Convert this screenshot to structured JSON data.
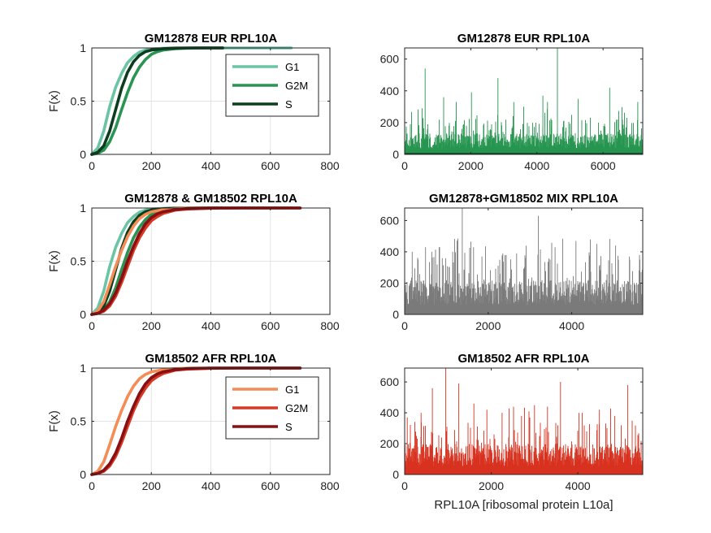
{
  "chart_data": [
    {
      "type": "line",
      "title": "GM12878 EUR RPL10A",
      "xlabel": "",
      "ylabel": "F(x)",
      "xlim": [
        0,
        800
      ],
      "ylim": [
        0,
        1
      ],
      "xticks": [
        "0",
        "200",
        "400",
        "600",
        "800"
      ],
      "yticks": [
        "0",
        "0.5",
        "1"
      ],
      "grid": true,
      "legend": {
        "placement": "top-right",
        "entries": [
          "G1",
          "G2M",
          "S"
        ]
      },
      "series": [
        {
          "name": "G1",
          "color": "#6bc4a4",
          "x": [
            0,
            20,
            40,
            60,
            80,
            100,
            120,
            140,
            160,
            180,
            200,
            240,
            280,
            340,
            400,
            670
          ],
          "y": [
            0,
            0.06,
            0.22,
            0.45,
            0.63,
            0.76,
            0.86,
            0.92,
            0.96,
            0.98,
            0.99,
            0.997,
            0.999,
            1,
            1,
            1
          ]
        },
        {
          "name": "G2M",
          "color": "#2a9452",
          "x": [
            0,
            20,
            40,
            60,
            80,
            100,
            120,
            140,
            160,
            180,
            200,
            220,
            240,
            280,
            320,
            400,
            440
          ],
          "y": [
            0,
            0.01,
            0.04,
            0.12,
            0.25,
            0.42,
            0.58,
            0.72,
            0.82,
            0.89,
            0.94,
            0.965,
            0.98,
            0.993,
            0.998,
            1,
            1
          ]
        },
        {
          "name": "S",
          "color": "#0d3d1f",
          "x": [
            0,
            20,
            40,
            60,
            80,
            100,
            120,
            140,
            160,
            180,
            200,
            240,
            280,
            340,
            420,
            440
          ],
          "y": [
            0,
            0.02,
            0.08,
            0.22,
            0.42,
            0.62,
            0.77,
            0.87,
            0.93,
            0.965,
            0.98,
            0.993,
            0.998,
            1,
            1,
            1
          ]
        }
      ]
    },
    {
      "type": "bar",
      "title": "GM12878 EUR RPL10A",
      "xlabel": "",
      "ylabel": "",
      "xlim": [
        0,
        7200
      ],
      "ylim": [
        0,
        670
      ],
      "xticks": [
        "0",
        "2000",
        "4000",
        "6000"
      ],
      "yticks": [
        "0",
        "200",
        "400",
        "600"
      ],
      "grid": false,
      "color": "#26954f",
      "n": 7200,
      "median": 60,
      "spikes": [
        [
          530,
          290
        ],
        [
          620,
          540
        ],
        [
          1180,
          360
        ],
        [
          1560,
          330
        ],
        [
          2020,
          390
        ],
        [
          2820,
          480
        ],
        [
          3300,
          330
        ],
        [
          3600,
          300
        ],
        [
          4180,
          370
        ],
        [
          4320,
          330
        ],
        [
          4620,
          670
        ],
        [
          5250,
          350
        ],
        [
          6200,
          420
        ],
        [
          7050,
          330
        ]
      ]
    },
    {
      "type": "line",
      "title": "GM12878 & GM18502 RPL10A",
      "xlabel": "",
      "ylabel": "F(x)",
      "xlim": [
        0,
        800
      ],
      "ylim": [
        0,
        1
      ],
      "xticks": [
        "0",
        "200",
        "400",
        "600",
        "800"
      ],
      "yticks": [
        "0",
        "0.5",
        "1"
      ],
      "grid": true,
      "series": [
        {
          "name": "",
          "color": "#6bc4a4",
          "x": [
            0,
            20,
            40,
            60,
            80,
            100,
            120,
            140,
            160,
            180,
            200,
            240,
            280,
            340,
            400,
            670
          ],
          "y": [
            0,
            0.06,
            0.22,
            0.45,
            0.63,
            0.76,
            0.86,
            0.92,
            0.96,
            0.98,
            0.99,
            0.997,
            0.999,
            1,
            1,
            1
          ]
        },
        {
          "name": "",
          "color": "#2a9452",
          "x": [
            0,
            20,
            40,
            60,
            80,
            100,
            120,
            140,
            160,
            180,
            200,
            220,
            240,
            280,
            320,
            400,
            440
          ],
          "y": [
            0,
            0.01,
            0.04,
            0.12,
            0.25,
            0.42,
            0.58,
            0.72,
            0.82,
            0.89,
            0.94,
            0.965,
            0.98,
            0.993,
            0.998,
            1,
            1
          ]
        },
        {
          "name": "",
          "color": "#0d3d1f",
          "x": [
            0,
            20,
            40,
            60,
            80,
            100,
            120,
            140,
            160,
            180,
            200,
            240,
            280,
            340,
            420,
            440
          ],
          "y": [
            0,
            0.02,
            0.08,
            0.22,
            0.42,
            0.62,
            0.77,
            0.87,
            0.93,
            0.965,
            0.98,
            0.993,
            0.998,
            1,
            1,
            1
          ]
        },
        {
          "name": "",
          "color": "#f38c55",
          "x": [
            0,
            20,
            40,
            60,
            80,
            100,
            120,
            140,
            160,
            180,
            200,
            240,
            280,
            340,
            400,
            700
          ],
          "y": [
            0,
            0.03,
            0.12,
            0.28,
            0.45,
            0.6,
            0.73,
            0.83,
            0.9,
            0.94,
            0.965,
            0.985,
            0.995,
            0.999,
            1,
            1
          ]
        },
        {
          "name": "",
          "color": "#d43a26",
          "x": [
            0,
            20,
            40,
            60,
            80,
            100,
            120,
            140,
            160,
            180,
            200,
            220,
            240,
            280,
            320,
            400,
            500,
            700
          ],
          "y": [
            0,
            0.01,
            0.03,
            0.08,
            0.17,
            0.3,
            0.45,
            0.6,
            0.72,
            0.81,
            0.88,
            0.92,
            0.95,
            0.98,
            0.99,
            0.998,
            1,
            1
          ]
        },
        {
          "name": "",
          "color": "#8a0f12",
          "x": [
            0,
            20,
            40,
            60,
            80,
            100,
            120,
            140,
            160,
            180,
            200,
            220,
            240,
            280,
            320,
            400,
            500,
            700
          ],
          "y": [
            0,
            0.01,
            0.04,
            0.1,
            0.2,
            0.34,
            0.5,
            0.64,
            0.76,
            0.85,
            0.91,
            0.945,
            0.965,
            0.985,
            0.995,
            0.999,
            1,
            1
          ]
        }
      ]
    },
    {
      "type": "bar",
      "title": "GM12878+GM18502 MIX RPL10A",
      "xlabel": "",
      "ylabel": "",
      "xlim": [
        0,
        5700
      ],
      "ylim": [
        0,
        680
      ],
      "xticks": [
        "0",
        "2000",
        "4000"
      ],
      "yticks": [
        "0",
        "200",
        "400",
        "600"
      ],
      "grid": false,
      "color": "#7a7a7a",
      "n": 5700,
      "median": 100,
      "spikes": [
        [
          180,
          400
        ],
        [
          500,
          430
        ],
        [
          650,
          400
        ],
        [
          900,
          360
        ],
        [
          1150,
          400
        ],
        [
          1380,
          680
        ],
        [
          1650,
          430
        ],
        [
          1850,
          370
        ],
        [
          2350,
          390
        ],
        [
          2680,
          390
        ],
        [
          2900,
          360
        ],
        [
          3200,
          630
        ],
        [
          3600,
          430
        ],
        [
          4100,
          470
        ],
        [
          4600,
          450
        ],
        [
          5050,
          440
        ],
        [
          5380,
          370
        ]
      ]
    },
    {
      "type": "line",
      "title": "GM18502 AFR RPL10A",
      "xlabel": "",
      "ylabel": "F(x)",
      "xlim": [
        0,
        800
      ],
      "ylim": [
        0,
        1
      ],
      "xticks": [
        "0",
        "200",
        "400",
        "600",
        "800"
      ],
      "yticks": [
        "0",
        "0.5",
        "1"
      ],
      "grid": true,
      "legend": {
        "placement": "top-right",
        "entries": [
          "G1",
          "G2M",
          "S"
        ]
      },
      "series": [
        {
          "name": "G1",
          "color": "#f38c55",
          "x": [
            0,
            20,
            40,
            60,
            80,
            100,
            120,
            140,
            160,
            180,
            200,
            240,
            280,
            340,
            400,
            700
          ],
          "y": [
            0,
            0.03,
            0.12,
            0.28,
            0.45,
            0.6,
            0.73,
            0.83,
            0.9,
            0.94,
            0.965,
            0.985,
            0.995,
            0.999,
            1,
            1
          ]
        },
        {
          "name": "G2M",
          "color": "#d43a26",
          "x": [
            0,
            20,
            40,
            60,
            80,
            100,
            120,
            140,
            160,
            180,
            200,
            220,
            240,
            280,
            320,
            400,
            500,
            700
          ],
          "y": [
            0,
            0.01,
            0.03,
            0.08,
            0.17,
            0.3,
            0.45,
            0.6,
            0.72,
            0.81,
            0.88,
            0.92,
            0.95,
            0.98,
            0.99,
            0.998,
            1,
            1
          ]
        },
        {
          "name": "S",
          "color": "#8a0f12",
          "x": [
            0,
            20,
            40,
            60,
            80,
            100,
            120,
            140,
            160,
            180,
            200,
            220,
            240,
            280,
            320,
            400,
            500,
            700
          ],
          "y": [
            0,
            0.01,
            0.04,
            0.1,
            0.2,
            0.34,
            0.5,
            0.64,
            0.76,
            0.85,
            0.91,
            0.945,
            0.965,
            0.985,
            0.995,
            0.999,
            1,
            1
          ]
        }
      ]
    },
    {
      "type": "bar",
      "title": "GM18502 AFR RPL10A",
      "xlabel": "RPL10A [ribosomal protein L10a]",
      "ylabel": "",
      "xlim": [
        0,
        5500
      ],
      "ylim": [
        0,
        690
      ],
      "xticks": [
        "0",
        "2000",
        "4000"
      ],
      "yticks": [
        "0",
        "200",
        "400",
        "600"
      ],
      "grid": false,
      "color": "#d8311f",
      "n": 5500,
      "median": 90,
      "spikes": [
        [
          60,
          370
        ],
        [
          380,
          400
        ],
        [
          640,
          560
        ],
        [
          950,
          690
        ],
        [
          1250,
          590
        ],
        [
          1600,
          460
        ],
        [
          1900,
          420
        ],
        [
          2250,
          400
        ],
        [
          2700,
          380
        ],
        [
          3000,
          450
        ],
        [
          3300,
          440
        ],
        [
          3600,
          600
        ],
        [
          4100,
          400
        ],
        [
          4500,
          420
        ],
        [
          4850,
          380
        ],
        [
          5150,
          580
        ]
      ]
    }
  ]
}
